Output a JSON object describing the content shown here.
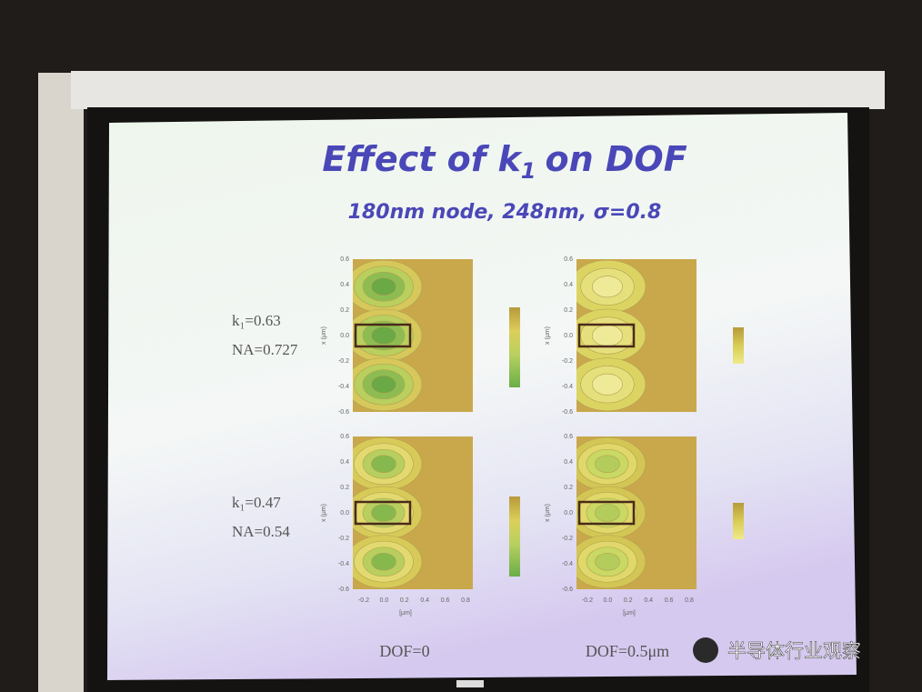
{
  "slide": {
    "title": {
      "main": "Effect of k",
      "subscript": "1",
      "rest": "on DOF"
    },
    "subtitle": "180nm node, 248nm, σ=0.8",
    "rows": [
      {
        "k1": "k₁=0.63",
        "na": "NA=0.727"
      },
      {
        "k1": "k₁=0.47",
        "na": "NA=0.54"
      }
    ],
    "columns": [
      "DOF=0",
      "DOF=0.5μm"
    ],
    "plot_axes": {
      "yticks": [
        "0.6",
        "0.4",
        "0.2",
        "0.0",
        "-0.2",
        "-0.4",
        "-0.6"
      ],
      "xticks": [
        "-0.2",
        "0.0",
        "0.2",
        "0.4",
        "0.6",
        "0.8"
      ],
      "ylabel": "x (μm)",
      "xlabel": "[μm]"
    }
  },
  "watermark": "半导体行业观察"
}
